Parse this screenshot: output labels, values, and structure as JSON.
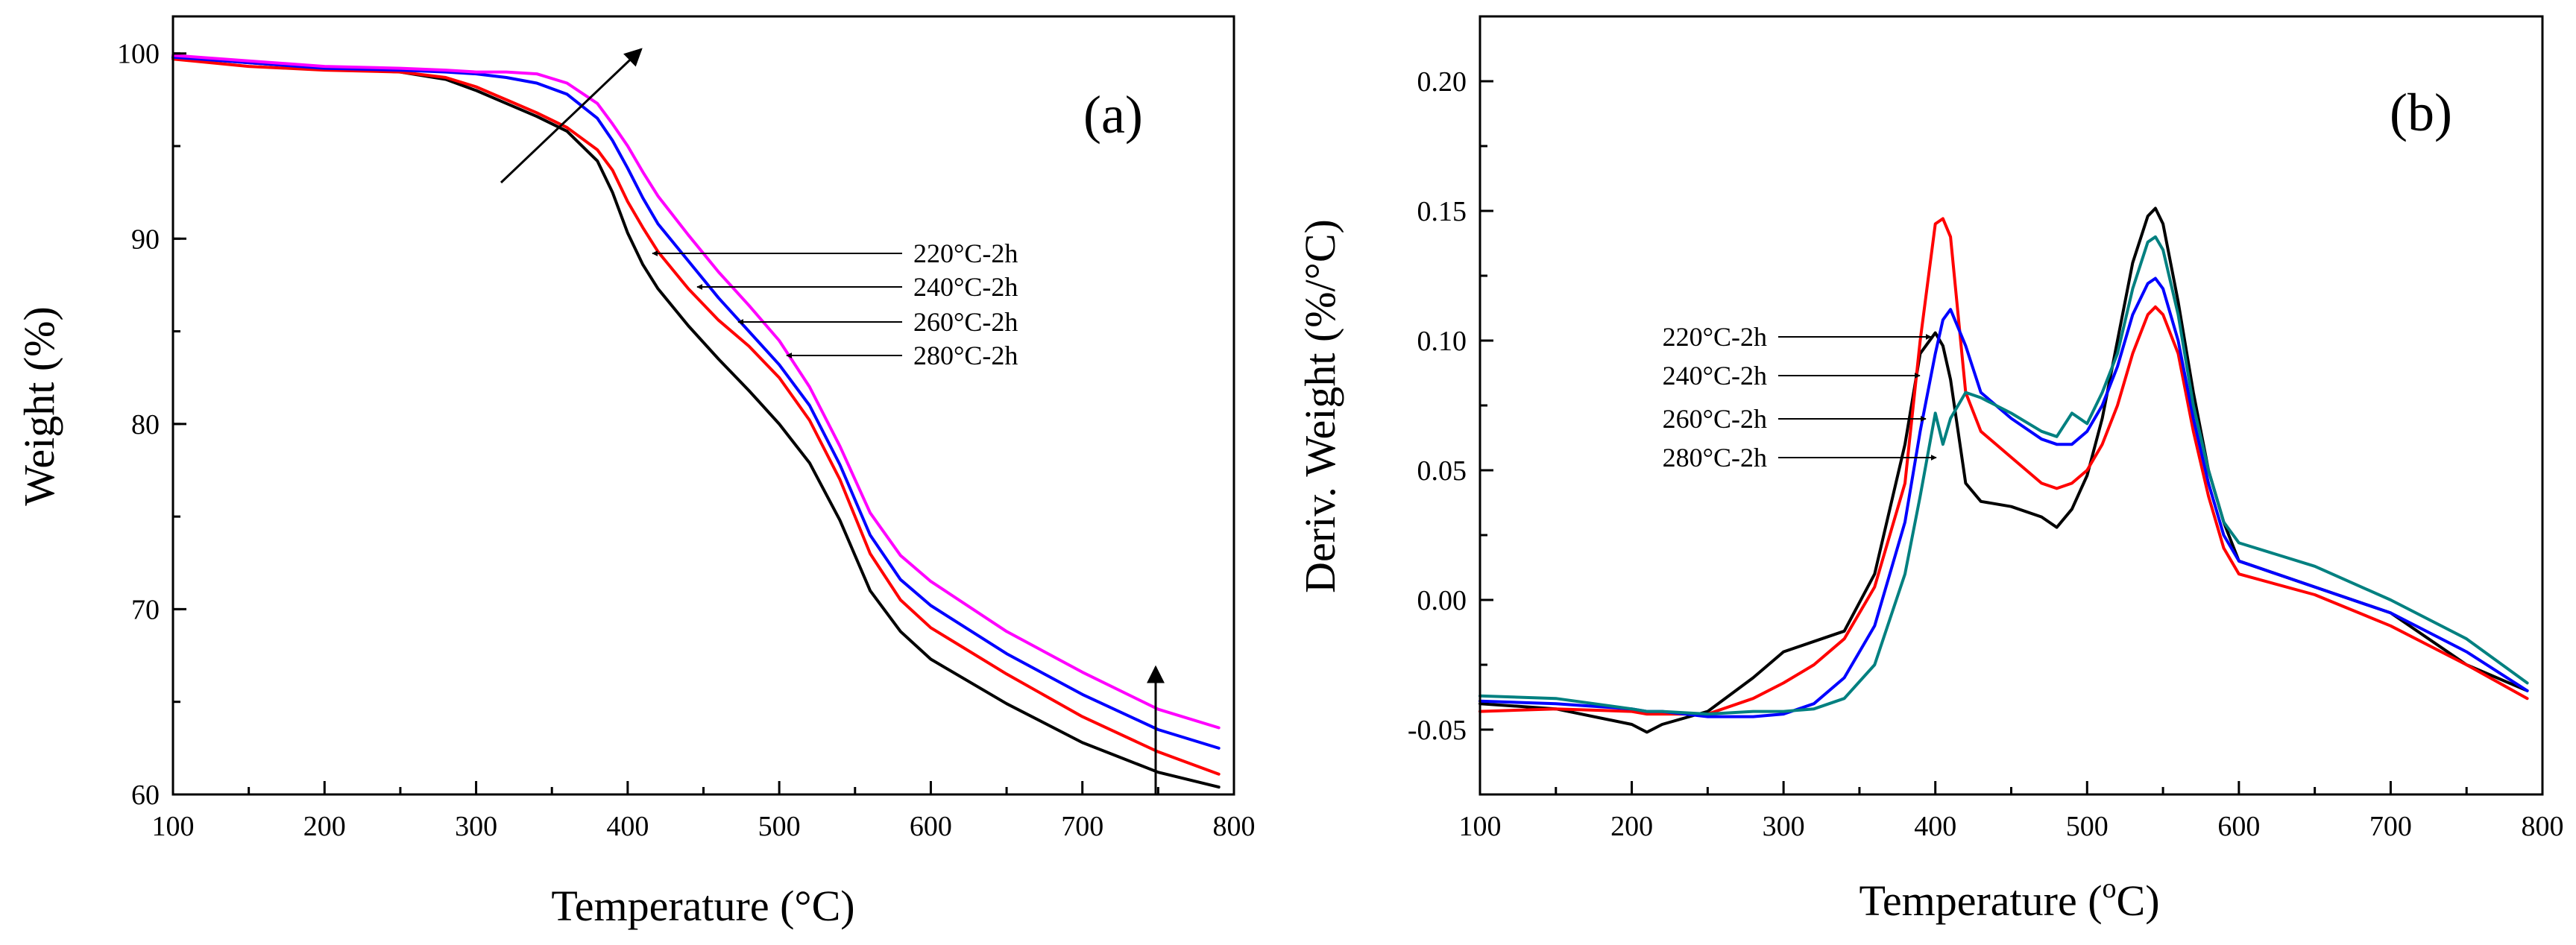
{
  "chart_data": [
    {
      "type": "line",
      "panel_label": "(a)",
      "xlabel": "Temperature (°C)",
      "ylabel": "Weight (%)",
      "xlim": [
        100,
        800
      ],
      "ylim": [
        60,
        102
      ],
      "xticks": [
        100,
        200,
        300,
        400,
        500,
        600,
        700,
        800
      ],
      "yticks": [
        60,
        70,
        80,
        90,
        100
      ],
      "x": [
        100,
        150,
        200,
        250,
        280,
        300,
        320,
        340,
        360,
        380,
        390,
        400,
        410,
        420,
        440,
        460,
        480,
        500,
        520,
        540,
        560,
        580,
        600,
        650,
        700,
        750,
        790
      ],
      "series": [
        {
          "name": "220°C-2h",
          "color": "#000000",
          "values": [
            99.8,
            99.5,
            99.2,
            99.0,
            98.6,
            98.0,
            97.3,
            96.6,
            95.8,
            94.2,
            92.5,
            90.3,
            88.6,
            87.3,
            85.3,
            83.5,
            81.8,
            80.0,
            77.9,
            74.8,
            71.0,
            68.8,
            67.3,
            64.9,
            62.8,
            61.2,
            60.4
          ]
        },
        {
          "name": "240°C-2h",
          "color": "#ff0000",
          "values": [
            99.7,
            99.3,
            99.1,
            99.0,
            98.7,
            98.2,
            97.5,
            96.8,
            96.0,
            94.8,
            93.7,
            92.0,
            90.6,
            89.3,
            87.3,
            85.6,
            84.2,
            82.5,
            80.2,
            77.0,
            73.0,
            70.5,
            69.0,
            66.5,
            64.2,
            62.3,
            61.1
          ]
        },
        {
          "name": "260°C-2h",
          "color": "#0000ff",
          "values": [
            99.8,
            99.5,
            99.2,
            99.1,
            99.0,
            98.9,
            98.7,
            98.4,
            97.8,
            96.5,
            95.3,
            93.8,
            92.2,
            90.8,
            88.8,
            86.8,
            85.0,
            83.2,
            81.0,
            77.8,
            74.0,
            71.6,
            70.2,
            67.6,
            65.4,
            63.5,
            62.5
          ]
        },
        {
          "name": "280°C-2h",
          "color": "#ff00ff",
          "values": [
            99.9,
            99.6,
            99.3,
            99.2,
            99.1,
            99.0,
            99.0,
            98.9,
            98.4,
            97.3,
            96.2,
            95.0,
            93.6,
            92.3,
            90.2,
            88.2,
            86.4,
            84.5,
            82.0,
            78.8,
            75.2,
            72.9,
            71.5,
            68.8,
            66.6,
            64.6,
            63.6
          ]
        }
      ],
      "annotations": [
        "220°C-2h",
        "240°C-2h",
        "260°C-2h",
        "280°C-2h"
      ]
    },
    {
      "type": "line",
      "panel_label": "(b)",
      "xlabel_main": "Temperature (",
      "xlabel_sup": "o",
      "xlabel_end": "C)",
      "ylabel": "Deriv. Weight (%/°C)",
      "xlim": [
        100,
        800
      ],
      "ylim": [
        -0.075,
        0.225
      ],
      "xticks": [
        100,
        200,
        300,
        400,
        500,
        600,
        700,
        800
      ],
      "yticks": [
        "-0.05",
        "0.00",
        "0.05",
        "0.10",
        "0.15",
        "0.20"
      ],
      "x": [
        100,
        150,
        200,
        210,
        220,
        250,
        280,
        300,
        320,
        340,
        360,
        380,
        390,
        400,
        405,
        410,
        420,
        430,
        450,
        470,
        480,
        490,
        500,
        510,
        520,
        530,
        540,
        545,
        550,
        560,
        570,
        580,
        590,
        600,
        650,
        700,
        750,
        790
      ],
      "series": [
        {
          "name": "220°C-2h",
          "color": "#000000",
          "values": [
            -0.04,
            -0.042,
            -0.048,
            -0.051,
            -0.048,
            -0.043,
            -0.03,
            -0.02,
            -0.016,
            -0.012,
            0.01,
            0.06,
            0.095,
            0.103,
            0.098,
            0.085,
            0.045,
            0.038,
            0.036,
            0.032,
            0.028,
            0.035,
            0.048,
            0.07,
            0.1,
            0.13,
            0.148,
            0.151,
            0.145,
            0.115,
            0.08,
            0.05,
            0.03,
            0.015,
            0.005,
            -0.005,
            -0.025,
            -0.035
          ]
        },
        {
          "name": "240°C-2h",
          "color": "#ff0000",
          "values": [
            -0.043,
            -0.042,
            -0.043,
            -0.044,
            -0.044,
            -0.044,
            -0.038,
            -0.032,
            -0.025,
            -0.015,
            0.005,
            0.045,
            0.1,
            0.145,
            0.147,
            0.14,
            0.08,
            0.065,
            0.055,
            0.045,
            0.043,
            0.045,
            0.05,
            0.06,
            0.075,
            0.095,
            0.11,
            0.113,
            0.11,
            0.095,
            0.065,
            0.04,
            0.02,
            0.01,
            0.002,
            -0.01,
            -0.025,
            -0.038
          ]
        },
        {
          "name": "260°C-2h",
          "color": "#0000ff",
          "values": [
            -0.039,
            -0.04,
            -0.042,
            -0.043,
            -0.043,
            -0.045,
            -0.045,
            -0.044,
            -0.04,
            -0.03,
            -0.01,
            0.03,
            0.065,
            0.095,
            0.108,
            0.112,
            0.098,
            0.08,
            0.07,
            0.062,
            0.06,
            0.06,
            0.065,
            0.075,
            0.09,
            0.11,
            0.122,
            0.124,
            0.12,
            0.1,
            0.07,
            0.045,
            0.025,
            0.015,
            0.005,
            -0.005,
            -0.02,
            -0.035
          ]
        },
        {
          "name": "280°C-2h",
          "color": "#008080",
          "values": [
            -0.037,
            -0.038,
            -0.042,
            -0.043,
            -0.043,
            -0.044,
            -0.043,
            -0.043,
            -0.042,
            -0.038,
            -0.025,
            0.01,
            0.04,
            0.072,
            0.06,
            0.07,
            0.08,
            0.078,
            0.072,
            0.065,
            0.063,
            0.072,
            0.068,
            0.08,
            0.095,
            0.12,
            0.138,
            0.14,
            0.135,
            0.11,
            0.075,
            0.05,
            0.03,
            0.022,
            0.013,
            0.0,
            -0.015,
            -0.032
          ]
        }
      ],
      "annotations": [
        "220°C-2h",
        "240°C-2h",
        "260°C-2h",
        "280°C-2h"
      ]
    }
  ]
}
